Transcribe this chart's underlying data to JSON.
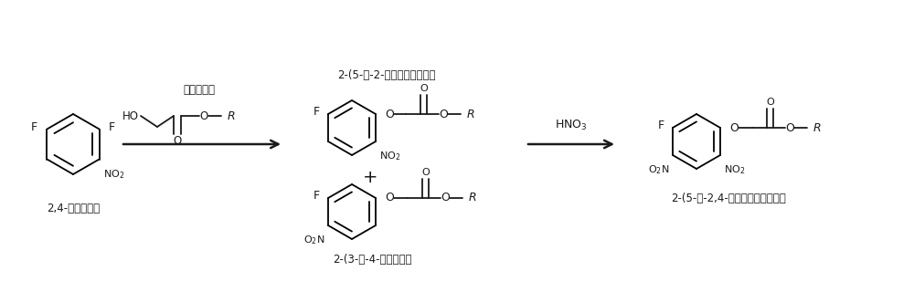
{
  "bg_color": "#ffffff",
  "line_color": "#1a1a1a",
  "fig_width": 10.0,
  "fig_height": 3.2,
  "dpi": 100,
  "title_text": "2-(5-氟-2-硒基苯氧）乙酸酯",
  "label1": "2,4-二氟硒基苯",
  "label2": "羟基乙酸酯",
  "label4": "2-(3-氟-4-硒基苯氧）",
  "label5": "HNO$_3$",
  "label6": "2-(5-氟-2,4-二硒基苯氧）乙酸酯"
}
